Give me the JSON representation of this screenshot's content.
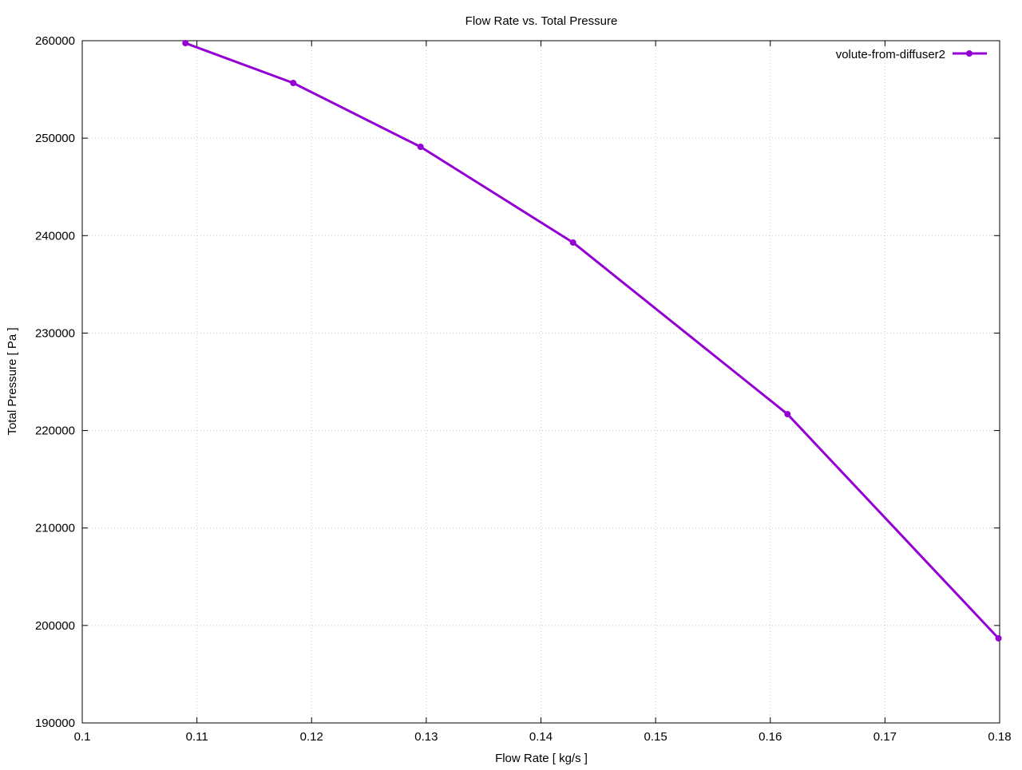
{
  "chart_data": {
    "type": "line",
    "title": "Flow Rate vs. Total Pressure",
    "xlabel": "Flow Rate [ kg/s ]",
    "ylabel": "Total Pressure [ Pa ]",
    "xlim": [
      0.1,
      0.18
    ],
    "ylim": [
      190000,
      260000
    ],
    "xticks": [
      0.1,
      0.11,
      0.12,
      0.13,
      0.14,
      0.15,
      0.16,
      0.17,
      0.18
    ],
    "xtick_labels": [
      "0.1",
      "0.11",
      "0.12",
      "0.13",
      "0.14",
      "0.15",
      "0.16",
      "0.17",
      "0.18"
    ],
    "yticks": [
      190000,
      200000,
      210000,
      220000,
      230000,
      240000,
      250000,
      260000
    ],
    "ytick_labels": [
      "190000",
      "200000",
      "210000",
      "220000",
      "230000",
      "240000",
      "250000",
      "260000"
    ],
    "grid": true,
    "legend_position": "top-right",
    "series": [
      {
        "name": "volute-from-diffuser2",
        "color": "#9400d3",
        "x": [
          0.109,
          0.1184,
          0.1295,
          0.1428,
          0.1615,
          0.1799
        ],
        "y": [
          259750,
          255660,
          249110,
          239290,
          221680,
          198680
        ]
      }
    ]
  }
}
